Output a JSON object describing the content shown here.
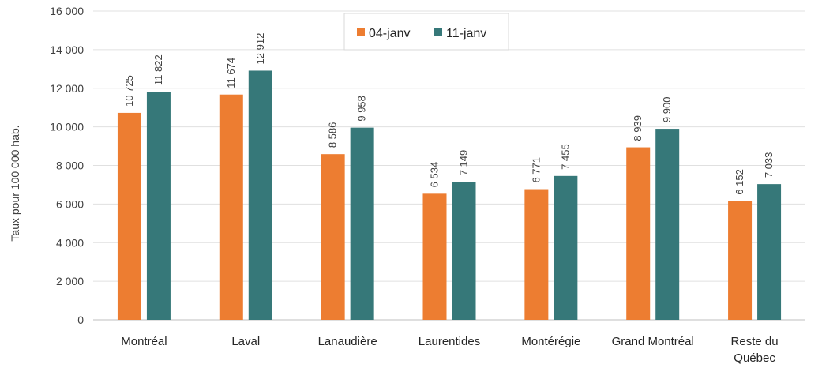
{
  "chart_data": {
    "type": "bar",
    "title": "",
    "xlabel": "",
    "ylabel": "Taux pour 100 000 hab.",
    "ylim": [
      0,
      16000
    ],
    "ytick_step": 2000,
    "ytick_labels": [
      "0",
      "2 000",
      "4 000",
      "6 000",
      "8 000",
      "10 000",
      "12 000",
      "14 000",
      "16 000"
    ],
    "grid": true,
    "legend_position": "top-center",
    "categories": [
      [
        "Montréal"
      ],
      [
        "Laval"
      ],
      [
        "Lanaudière"
      ],
      [
        "Laurentides"
      ],
      [
        "Montérégie"
      ],
      [
        "Grand Montréal"
      ],
      [
        "Reste du",
        "Québec"
      ]
    ],
    "series": [
      {
        "name": "04-janv",
        "color": "#ed7d31",
        "values": [
          10725,
          11674,
          8586,
          6534,
          6771,
          8939,
          6152
        ],
        "labels": [
          "10 725",
          "11 674",
          "8 586",
          "6 534",
          "6 771",
          "8 939",
          "6 152"
        ]
      },
      {
        "name": "11-janv",
        "color": "#367879",
        "values": [
          11822,
          12912,
          9958,
          7149,
          7455,
          9900,
          7033
        ],
        "labels": [
          "11 822",
          "12 912",
          "9 958",
          "7 149",
          "7 455",
          "9 900",
          "7 033"
        ]
      }
    ]
  }
}
